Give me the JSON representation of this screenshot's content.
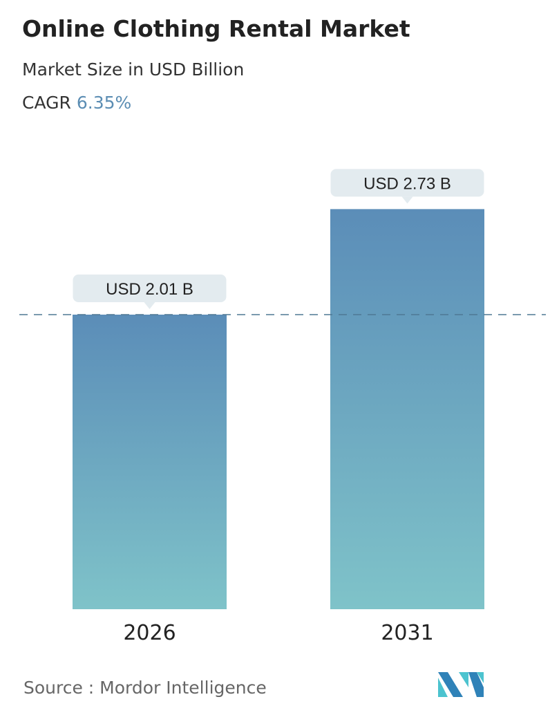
{
  "title": "Online Clothing Rental Market",
  "subtitle": "Market Size in USD Billion",
  "cagr_label": "CAGR",
  "cagr_value": "6.35%",
  "source": "Source :  Mordor Intelligence",
  "logo_text": "MI",
  "colors": {
    "bar_top": "#5b8db8",
    "bar_bottom": "#7fc3c9",
    "callout": "#e3ebef",
    "dashed_line": "#4f7893",
    "cagr": "#5b8db3"
  },
  "chart_data": {
    "type": "bar",
    "categories": [
      "2026",
      "2031"
    ],
    "values": [
      2.01,
      2.73
    ],
    "data_labels": [
      "USD 2.01 B",
      "USD 2.73 B"
    ],
    "reference_line": 2.01,
    "grid": false,
    "ylim": [
      0,
      2.73
    ]
  }
}
